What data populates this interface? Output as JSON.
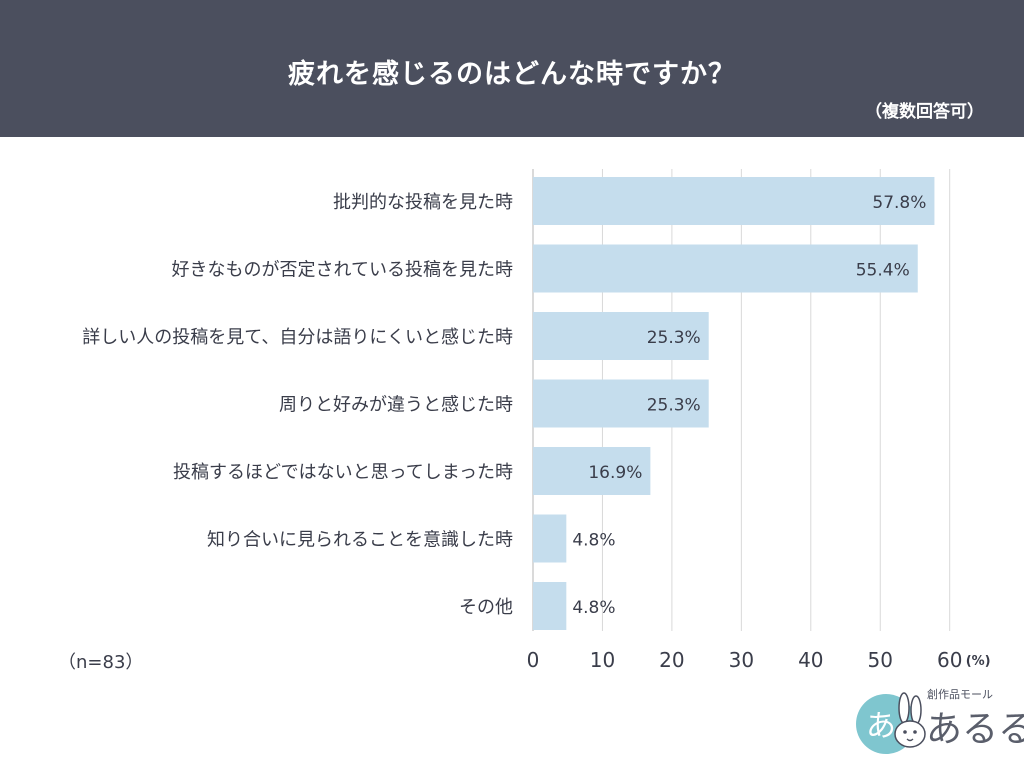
{
  "header": {
    "title": "疲れを感じるのはどんな時ですか？",
    "subtitle": "（複数回答可）"
  },
  "sample_size": "（n=83）",
  "logo": {
    "tagline": "創作品モール",
    "name": "あるる"
  },
  "colors": {
    "header_bg": "#4b4f5e",
    "bar": "#c5dded",
    "grid": "#d9d9d9",
    "text": "#3a3d4a"
  },
  "chart_data": {
    "type": "bar",
    "orientation": "horizontal",
    "categories": [
      "批判的な投稿を見た時",
      "好きなものが否定されている投稿を見た時",
      "詳しい人の投稿を見て、自分は語りにくいと感じた時",
      "周りと好みが違うと感じた時",
      "投稿するほどではないと思ってしまった時",
      "知り合いに見られることを意識した時",
      "その他"
    ],
    "values": [
      57.8,
      55.4,
      25.3,
      25.3,
      16.9,
      4.8,
      4.8
    ],
    "value_labels": [
      "57.8%",
      "55.4%",
      "25.3%",
      "25.3%",
      "16.9%",
      "4.8%",
      "4.8%"
    ],
    "xlim": [
      0,
      60
    ],
    "xticks": [
      "0",
      "10",
      "20",
      "30",
      "40",
      "50",
      "60"
    ],
    "xunit": "(%)",
    "grid": true
  }
}
